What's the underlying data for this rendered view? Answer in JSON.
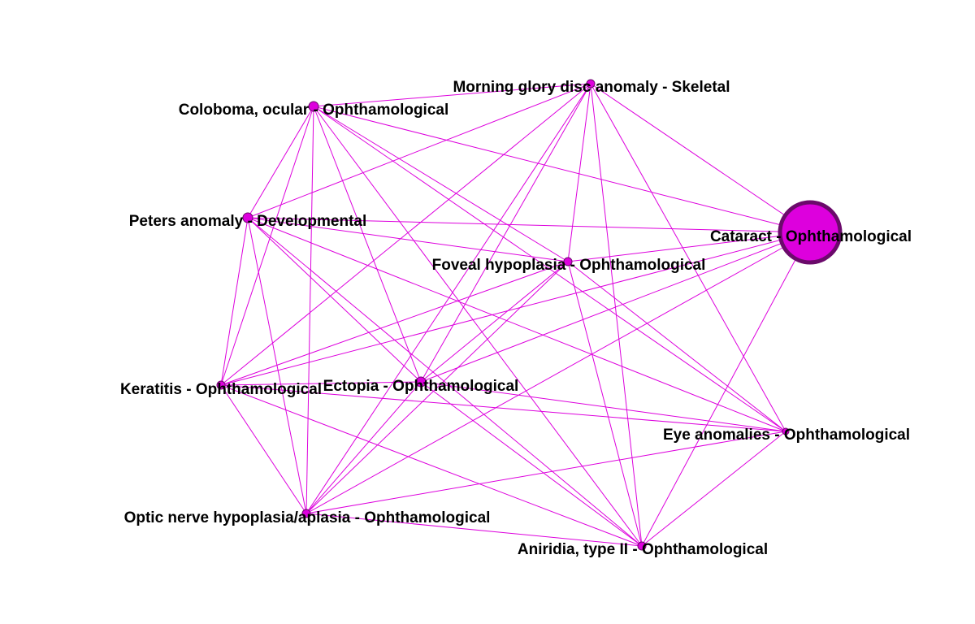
{
  "diagram": {
    "colors": {
      "edge": "#dd00dd",
      "node_fill": "#dd00dd",
      "node_stroke": "#6b0a6b",
      "label": "#000000"
    },
    "nodes": [
      {
        "id": "morning-glory",
        "label": "Morning glory disc anomaly - Skeletal"
      },
      {
        "id": "coloboma",
        "label": "Coloboma, ocular - Ophthamological"
      },
      {
        "id": "peters",
        "label": "Peters anomaly - Developmental"
      },
      {
        "id": "cataract",
        "label": "Cataract - Ophthamological"
      },
      {
        "id": "foveal",
        "label": "Foveal hypoplasia - Ophthamological"
      },
      {
        "id": "keratitis",
        "label": "Keratitis - Ophthamological"
      },
      {
        "id": "ectopia",
        "label": "Ectopia - Ophthamological"
      },
      {
        "id": "eye-anomalies",
        "label": "Eye anomalies - Ophthamological"
      },
      {
        "id": "optic-nerve",
        "label": "Optic nerve hypoplasia/aplasia - Ophthamological"
      },
      {
        "id": "aniridia",
        "label": "Aniridia, type II - Ophthamological"
      }
    ],
    "edges": [
      [
        "coloboma",
        "morning-glory"
      ],
      [
        "coloboma",
        "peters"
      ],
      [
        "coloboma",
        "cataract"
      ],
      [
        "coloboma",
        "foveal"
      ],
      [
        "coloboma",
        "keratitis"
      ],
      [
        "coloboma",
        "ectopia"
      ],
      [
        "coloboma",
        "eye-anomalies"
      ],
      [
        "coloboma",
        "optic-nerve"
      ],
      [
        "coloboma",
        "aniridia"
      ],
      [
        "morning-glory",
        "peters"
      ],
      [
        "morning-glory",
        "cataract"
      ],
      [
        "morning-glory",
        "foveal"
      ],
      [
        "morning-glory",
        "keratitis"
      ],
      [
        "morning-glory",
        "ectopia"
      ],
      [
        "morning-glory",
        "eye-anomalies"
      ],
      [
        "morning-glory",
        "optic-nerve"
      ],
      [
        "morning-glory",
        "aniridia"
      ],
      [
        "peters",
        "cataract"
      ],
      [
        "peters",
        "foveal"
      ],
      [
        "peters",
        "keratitis"
      ],
      [
        "peters",
        "ectopia"
      ],
      [
        "peters",
        "eye-anomalies"
      ],
      [
        "peters",
        "optic-nerve"
      ],
      [
        "peters",
        "aniridia"
      ],
      [
        "cataract",
        "foveal"
      ],
      [
        "cataract",
        "keratitis"
      ],
      [
        "cataract",
        "ectopia"
      ],
      [
        "cataract",
        "optic-nerve"
      ],
      [
        "cataract",
        "aniridia"
      ],
      [
        "foveal",
        "keratitis"
      ],
      [
        "foveal",
        "ectopia"
      ],
      [
        "foveal",
        "eye-anomalies"
      ],
      [
        "foveal",
        "optic-nerve"
      ],
      [
        "foveal",
        "aniridia"
      ],
      [
        "keratitis",
        "ectopia"
      ],
      [
        "keratitis",
        "eye-anomalies"
      ],
      [
        "keratitis",
        "optic-nerve"
      ],
      [
        "keratitis",
        "aniridia"
      ],
      [
        "ectopia",
        "eye-anomalies"
      ],
      [
        "ectopia",
        "optic-nerve"
      ],
      [
        "ectopia",
        "aniridia"
      ],
      [
        "eye-anomalies",
        "optic-nerve"
      ],
      [
        "eye-anomalies",
        "aniridia"
      ],
      [
        "optic-nerve",
        "aniridia"
      ]
    ]
  }
}
